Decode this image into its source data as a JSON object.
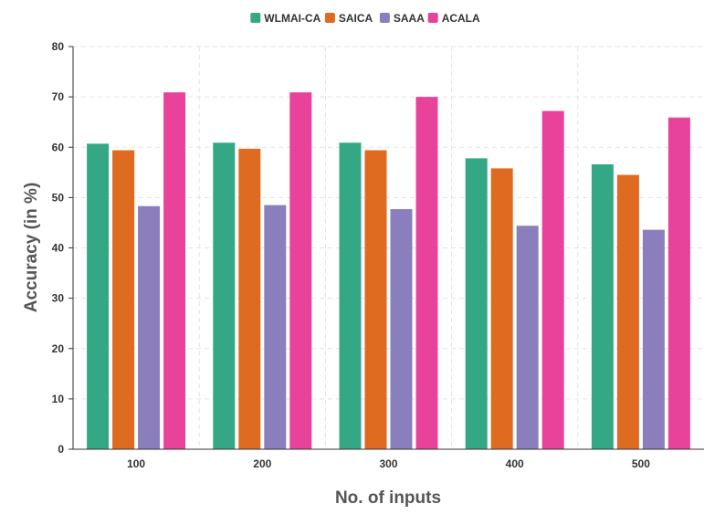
{
  "chart_data": {
    "type": "bar",
    "categories": [
      "100",
      "200",
      "300",
      "400",
      "500"
    ],
    "series": [
      {
        "name": "WLMAI-CA",
        "values": [
          60.7,
          60.9,
          60.9,
          57.8,
          56.6
        ]
      },
      {
        "name": "SAICA",
        "values": [
          59.4,
          59.7,
          59.4,
          55.8,
          54.5
        ]
      },
      {
        "name": "SAAA",
        "values": [
          48.3,
          48.5,
          47.7,
          44.4,
          43.6
        ]
      },
      {
        "name": "ACALA",
        "values": [
          70.9,
          70.9,
          70.0,
          67.2,
          65.9
        ]
      }
    ],
    "colors": [
      "#34a884",
      "#de6b1f",
      "#8a7fbc",
      "#e8429a"
    ],
    "xlabel": "No. of inputs",
    "ylabel": "Accuracy (in %)",
    "ylim": [
      0,
      80
    ],
    "yticks": [
      0,
      10,
      20,
      30,
      40,
      50,
      60,
      70,
      80
    ],
    "legend_position": "top-center",
    "grid": true
  }
}
